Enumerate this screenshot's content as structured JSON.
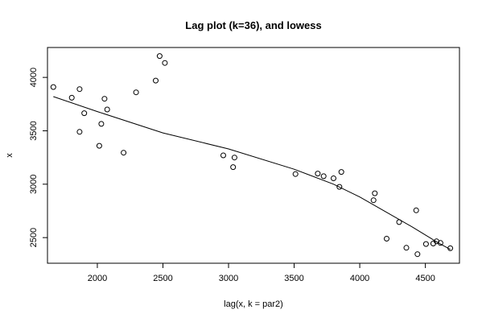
{
  "chart_data": {
    "type": "scatter",
    "title": "Lag plot (k=36), and lowess",
    "xlabel": "lag(x, k = par2)",
    "ylabel": "x",
    "xlim": [
      1620,
      4760
    ],
    "ylim": [
      2260,
      4280
    ],
    "xticks": [
      2000,
      2500,
      3000,
      3500,
      4000,
      4500
    ],
    "yticks": [
      2500,
      3000,
      3500,
      4000
    ],
    "grid": false,
    "legend": "none",
    "point_color": "#000000",
    "line_color": "#000000",
    "points": [
      {
        "x": 1665,
        "y": 3910
      },
      {
        "x": 1805,
        "y": 3810
      },
      {
        "x": 1865,
        "y": 3890
      },
      {
        "x": 1865,
        "y": 3490
      },
      {
        "x": 1900,
        "y": 3665
      },
      {
        "x": 2015,
        "y": 3360
      },
      {
        "x": 2030,
        "y": 3565
      },
      {
        "x": 2055,
        "y": 3800
      },
      {
        "x": 2075,
        "y": 3700
      },
      {
        "x": 2200,
        "y": 3295
      },
      {
        "x": 2295,
        "y": 3860
      },
      {
        "x": 2445,
        "y": 3970
      },
      {
        "x": 2475,
        "y": 4200
      },
      {
        "x": 2515,
        "y": 4135
      },
      {
        "x": 2960,
        "y": 3270
      },
      {
        "x": 3035,
        "y": 3160
      },
      {
        "x": 3045,
        "y": 3250
      },
      {
        "x": 3510,
        "y": 3095
      },
      {
        "x": 3680,
        "y": 3100
      },
      {
        "x": 3725,
        "y": 3075
      },
      {
        "x": 3800,
        "y": 3055
      },
      {
        "x": 3845,
        "y": 2975
      },
      {
        "x": 3860,
        "y": 3115
      },
      {
        "x": 4105,
        "y": 2850
      },
      {
        "x": 4115,
        "y": 2915
      },
      {
        "x": 4205,
        "y": 2490
      },
      {
        "x": 4300,
        "y": 2645
      },
      {
        "x": 4355,
        "y": 2405
      },
      {
        "x": 4430,
        "y": 2755
      },
      {
        "x": 4440,
        "y": 2345
      },
      {
        "x": 4505,
        "y": 2440
      },
      {
        "x": 4560,
        "y": 2445
      },
      {
        "x": 4585,
        "y": 2465
      },
      {
        "x": 4615,
        "y": 2450
      },
      {
        "x": 4690,
        "y": 2400
      }
    ],
    "lowess": [
      {
        "x": 1665,
        "y": 3820
      },
      {
        "x": 2000,
        "y": 3680
      },
      {
        "x": 2500,
        "y": 3480
      },
      {
        "x": 3000,
        "y": 3330
      },
      {
        "x": 3500,
        "y": 3140
      },
      {
        "x": 3800,
        "y": 3000
      },
      {
        "x": 4000,
        "y": 2880
      },
      {
        "x": 4200,
        "y": 2740
      },
      {
        "x": 4400,
        "y": 2600
      },
      {
        "x": 4600,
        "y": 2450
      },
      {
        "x": 4690,
        "y": 2390
      }
    ]
  }
}
